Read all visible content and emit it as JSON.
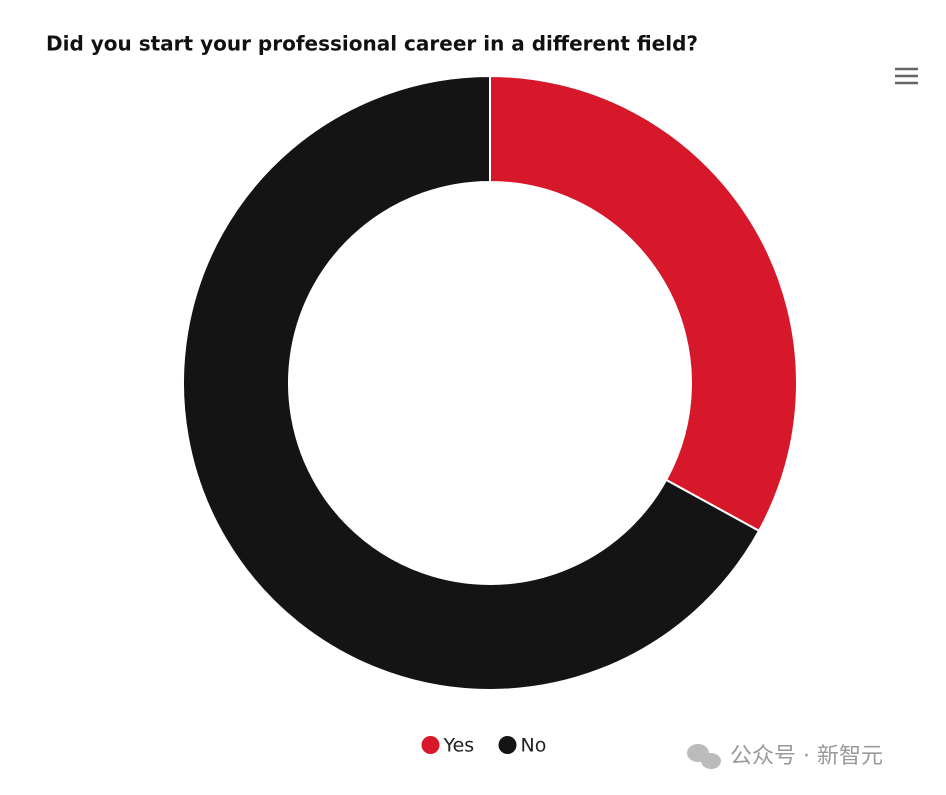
{
  "chart_data": {
    "type": "donut",
    "title": "Did you start your professional career in a different field?",
    "categories": [
      "Yes",
      "No"
    ],
    "values": [
      33,
      67
    ],
    "colors": [
      "#d7182a",
      "#141414"
    ],
    "legend": "bottom"
  },
  "watermark": "公众号 · 新智元"
}
